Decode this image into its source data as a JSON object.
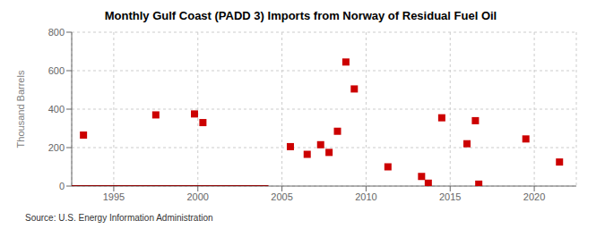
{
  "chart_data": {
    "type": "scatter",
    "title": "Monthly Gulf Coast (PADD 3) Imports from Norway of Residual Fuel Oil",
    "ylabel": "Thousand Barrels",
    "annotations": [
      "Source: U.S. Energy Information Administration"
    ],
    "xlim": [
      1992.5,
      2022.5
    ],
    "ylim": [
      0,
      800
    ],
    "xticks": [
      1995,
      2000,
      2005,
      2010,
      2015,
      2020
    ],
    "yticks": [
      0,
      200,
      400,
      600,
      800
    ],
    "grid": true,
    "series": [
      {
        "type": "line",
        "color": "#8b0000",
        "x": [
          1992.5,
          2004.2
        ],
        "values": [
          0,
          0
        ]
      },
      {
        "type": "scatter",
        "color": "#cc0000",
        "marker": "square",
        "x": [
          1993.2,
          1997.5,
          1999.8,
          2000.3,
          2005.5,
          2006.5,
          2007.3,
          2007.8,
          2008.3,
          2008.8,
          2009.3,
          2011.3,
          2013.3,
          2013.7,
          2014.5,
          2016.0,
          2016.5,
          2016.7,
          2019.5,
          2021.5
        ],
        "values": [
          265,
          370,
          375,
          330,
          205,
          165,
          215,
          175,
          285,
          645,
          505,
          100,
          50,
          15,
          355,
          220,
          340,
          10,
          245,
          125
        ]
      }
    ]
  }
}
